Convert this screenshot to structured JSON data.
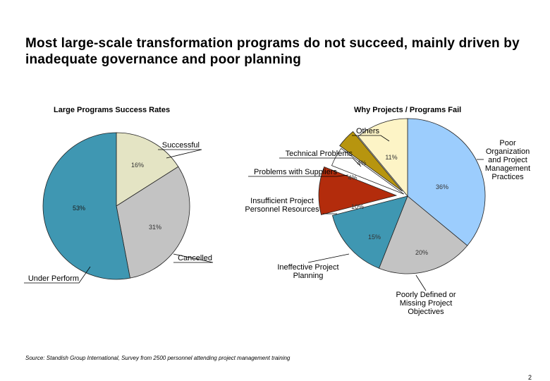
{
  "title": "Most large-scale transformation programs do not succeed, mainly driven by inadequate governance and poor planning",
  "source": "Source: Standish Group International, Survey from 2500 personnel attending project management training",
  "page_number": "2",
  "chart_data": [
    {
      "type": "pie",
      "title": "Large Programs Success Rates",
      "slices": [
        {
          "label": "Successful",
          "value": 16,
          "value_label": "16%",
          "color": "#e4e4c4"
        },
        {
          "label": "Cancelled",
          "value": 31,
          "value_label": "31%",
          "color": "#c3c3c3"
        },
        {
          "label": "Under Perform",
          "value": 53,
          "value_label": "53%",
          "color": "#3f97b2"
        }
      ]
    },
    {
      "type": "pie",
      "title": "Why Projects / Programs Fail",
      "slices": [
        {
          "label": "Poor Organization and Project Management Practices",
          "value": 36,
          "value_label": "36%",
          "color": "#9ccdfd"
        },
        {
          "label": "Poorly Defined or Missing Project Objectives",
          "value": 20,
          "value_label": "20%",
          "color": "#c3c3c3"
        },
        {
          "label": "Ineffective Project Planning",
          "value": 15,
          "value_label": "15%",
          "color": "#3f97b2"
        },
        {
          "label": "Insufficient Project Personnel Resources",
          "value": 10,
          "value_label": "10%",
          "color": "#b32c0c"
        },
        {
          "label": "Problems with Suppliers",
          "value": 4,
          "value_label": "4%",
          "color": "#ffffff"
        },
        {
          "label": "Technical Problems",
          "value": 4,
          "value_label": "4%",
          "color": "#b7950f"
        },
        {
          "label": "Others",
          "value": 11,
          "value_label": "11%",
          "color": "#fdf4c6"
        }
      ]
    }
  ]
}
